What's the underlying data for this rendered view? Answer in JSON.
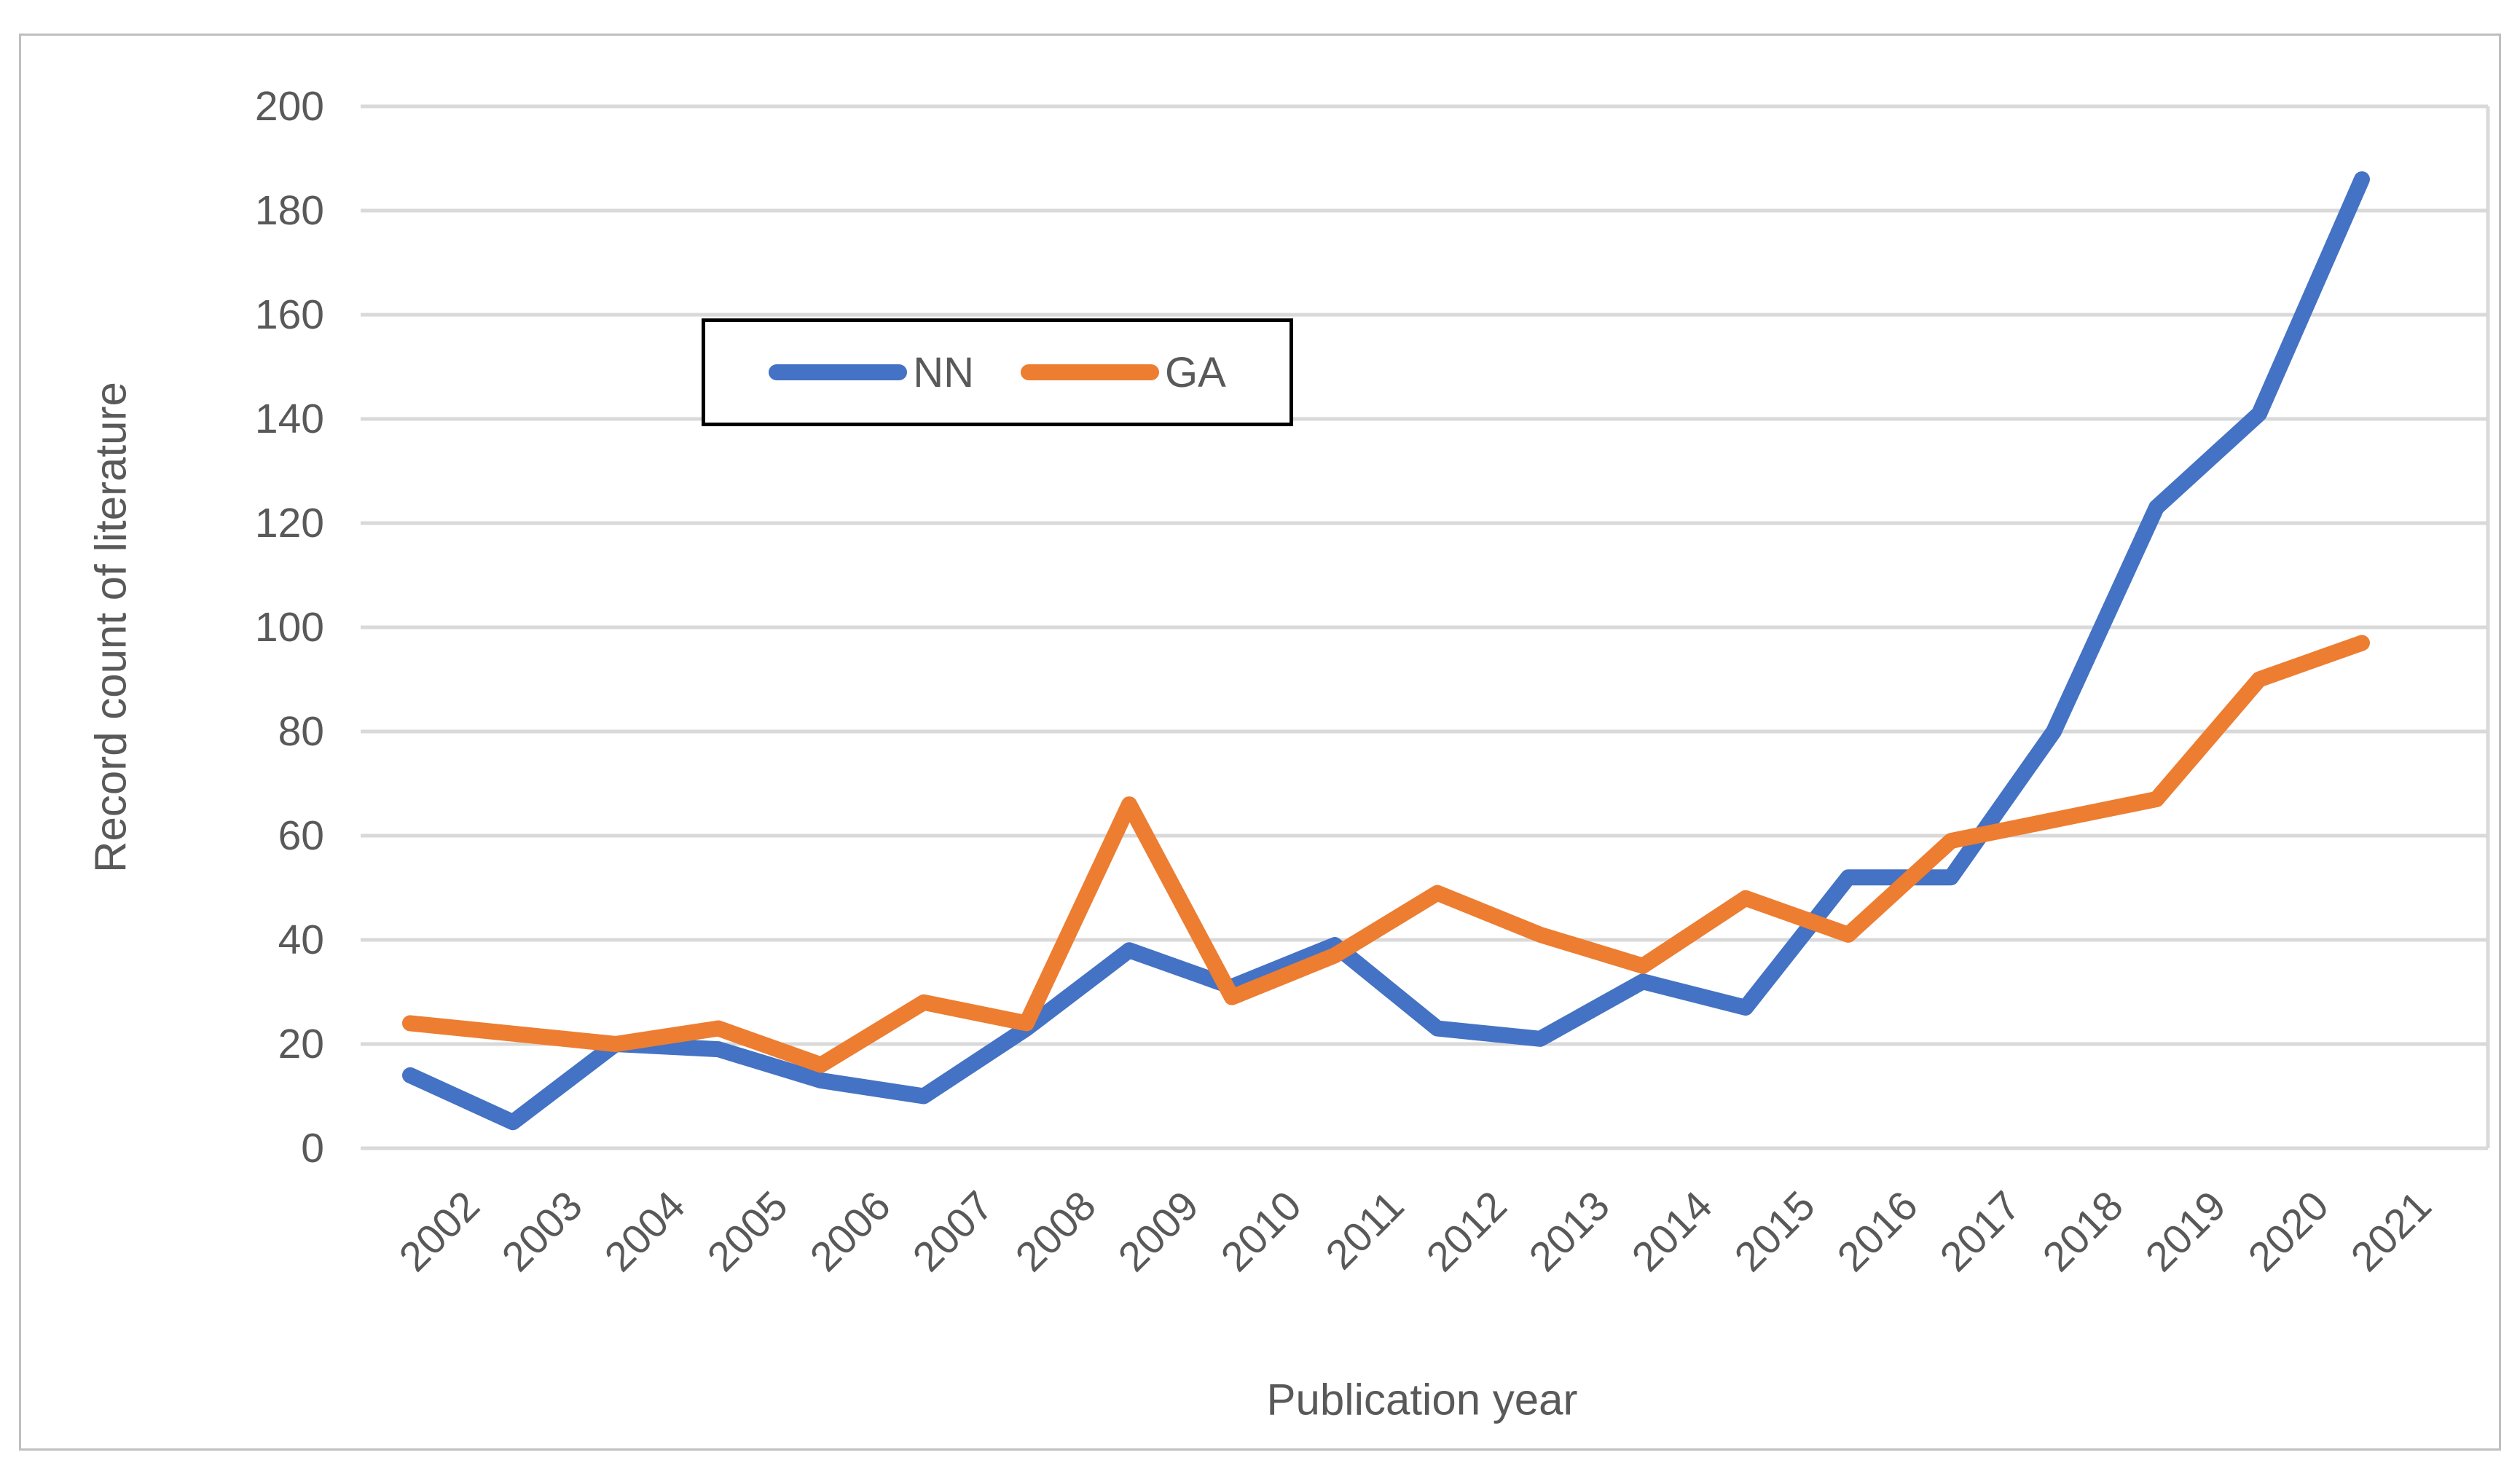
{
  "chart_data": {
    "type": "line",
    "title": "",
    "categories": [
      "2002",
      "2003",
      "2004",
      "2005",
      "2006",
      "2007",
      "2008",
      "2009",
      "2010",
      "2011",
      "2012",
      "2013",
      "2014",
      "2015",
      "2016",
      "2017",
      "2018",
      "2019",
      "2020",
      "2021"
    ],
    "series": [
      {
        "name": "NN",
        "color": "#4472C4",
        "values": [
          14,
          5,
          20,
          19,
          13,
          10,
          23,
          38,
          31,
          39,
          23,
          21,
          32,
          27,
          52,
          52,
          80,
          123,
          141,
          186
        ]
      },
      {
        "name": "GA",
        "color": "#ED7D31",
        "values": [
          24,
          22,
          20,
          23,
          16,
          28,
          24,
          66,
          29,
          37,
          49,
          41,
          35,
          48,
          41,
          59,
          63,
          67,
          90,
          97
        ]
      }
    ],
    "xlabel": "Publication year",
    "ylabel": "Record count of literature",
    "ylim": [
      0,
      200
    ],
    "ytick_step": 20,
    "yticks": [
      "0",
      "20",
      "40",
      "60",
      "80",
      "100",
      "120",
      "140",
      "160",
      "180",
      "200"
    ],
    "grid": "horizontal-only",
    "gridline_color": "#D9D9D9",
    "legend_position": "top-center-inside",
    "legend_border_color": "#000000"
  },
  "legend": {
    "items": [
      {
        "label": "NN",
        "color": "#4472C4"
      },
      {
        "label": "GA",
        "color": "#ED7D31"
      }
    ]
  }
}
